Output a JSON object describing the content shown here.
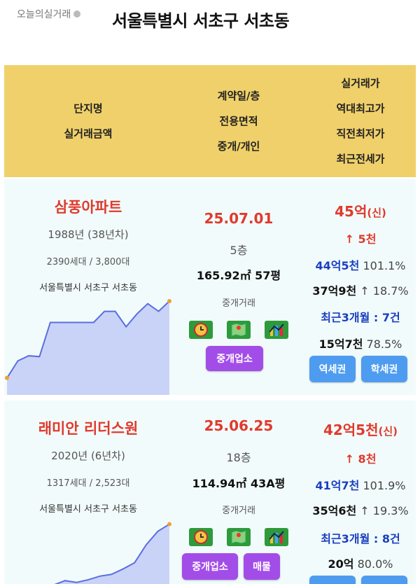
{
  "top": {
    "label": "오늘의실거래",
    "region": "서울특별시 서초구 서초동"
  },
  "header": {
    "col1": [
      "단지명",
      "실거래금액"
    ],
    "col2": [
      "계약일/층",
      "전용면적",
      "중개/개인"
    ],
    "col3": [
      "실거래가",
      "역대최고가",
      "직전최저가",
      "최근전세가"
    ]
  },
  "colors": {
    "header_bg": "#f0d06a",
    "accent_red": "#e03a2d",
    "blue": "#1a3fbf",
    "purple": "#a24de8",
    "button_blue": "#4d9cf0"
  },
  "items": [
    {
      "name": "삼풍아파트",
      "year": "1988년 (38년차)",
      "units": "2390세대 / 3,800대",
      "address": "서울특별시 서초구 서초동",
      "date": "25.07.01",
      "floor": "5층",
      "area": "165.92㎡ 57평",
      "deal_type": "중개거래",
      "agent_button": "중개업소",
      "price": "45억",
      "price_tag": "(신)",
      "diff": "↑ 5천",
      "high_price": "44억5천",
      "high_pct": "101.1%",
      "low_price": "37억9천",
      "low_pct": "↑ 18.7%",
      "recent": "최근3개월 : 7건",
      "jeonse": "15억7천",
      "jeonse_pct": "78.5%",
      "btn1": "역세권",
      "btn2": "학세권",
      "trend": [
        0.1,
        0.3,
        0.36,
        0.35,
        0.75,
        0.75,
        0.75,
        0.75,
        0.75,
        0.88,
        0.88,
        0.7,
        0.85,
        0.97,
        0.88,
        1.0
      ]
    },
    {
      "name": "래미안 리더스원",
      "year": "2020년 (6년차)",
      "units": "1317세대 / 2,523대",
      "address": "서울특별시 서초구 서초동",
      "date": "25.06.25",
      "floor": "18층",
      "area": "114.94㎡ 43A평",
      "deal_type": "중개거래",
      "agent_button": "중개업소",
      "extra_button": "매물",
      "price": "42억5천",
      "price_tag": "(신)",
      "diff": "↑ 8천",
      "high_price": "41억7천",
      "high_pct": "101.9%",
      "low_price": "35억6천",
      "low_pct": "↑ 19.3%",
      "recent": "최근3개월 : 8건",
      "jeonse": "20억",
      "jeonse_pct": "80.0%",
      "trend": [
        0.05,
        0.3,
        0.05,
        0.05,
        0.3,
        0.35,
        0.33,
        0.36,
        0.4,
        0.42,
        0.48,
        0.55,
        0.75,
        0.9,
        0.98
      ]
    }
  ]
}
